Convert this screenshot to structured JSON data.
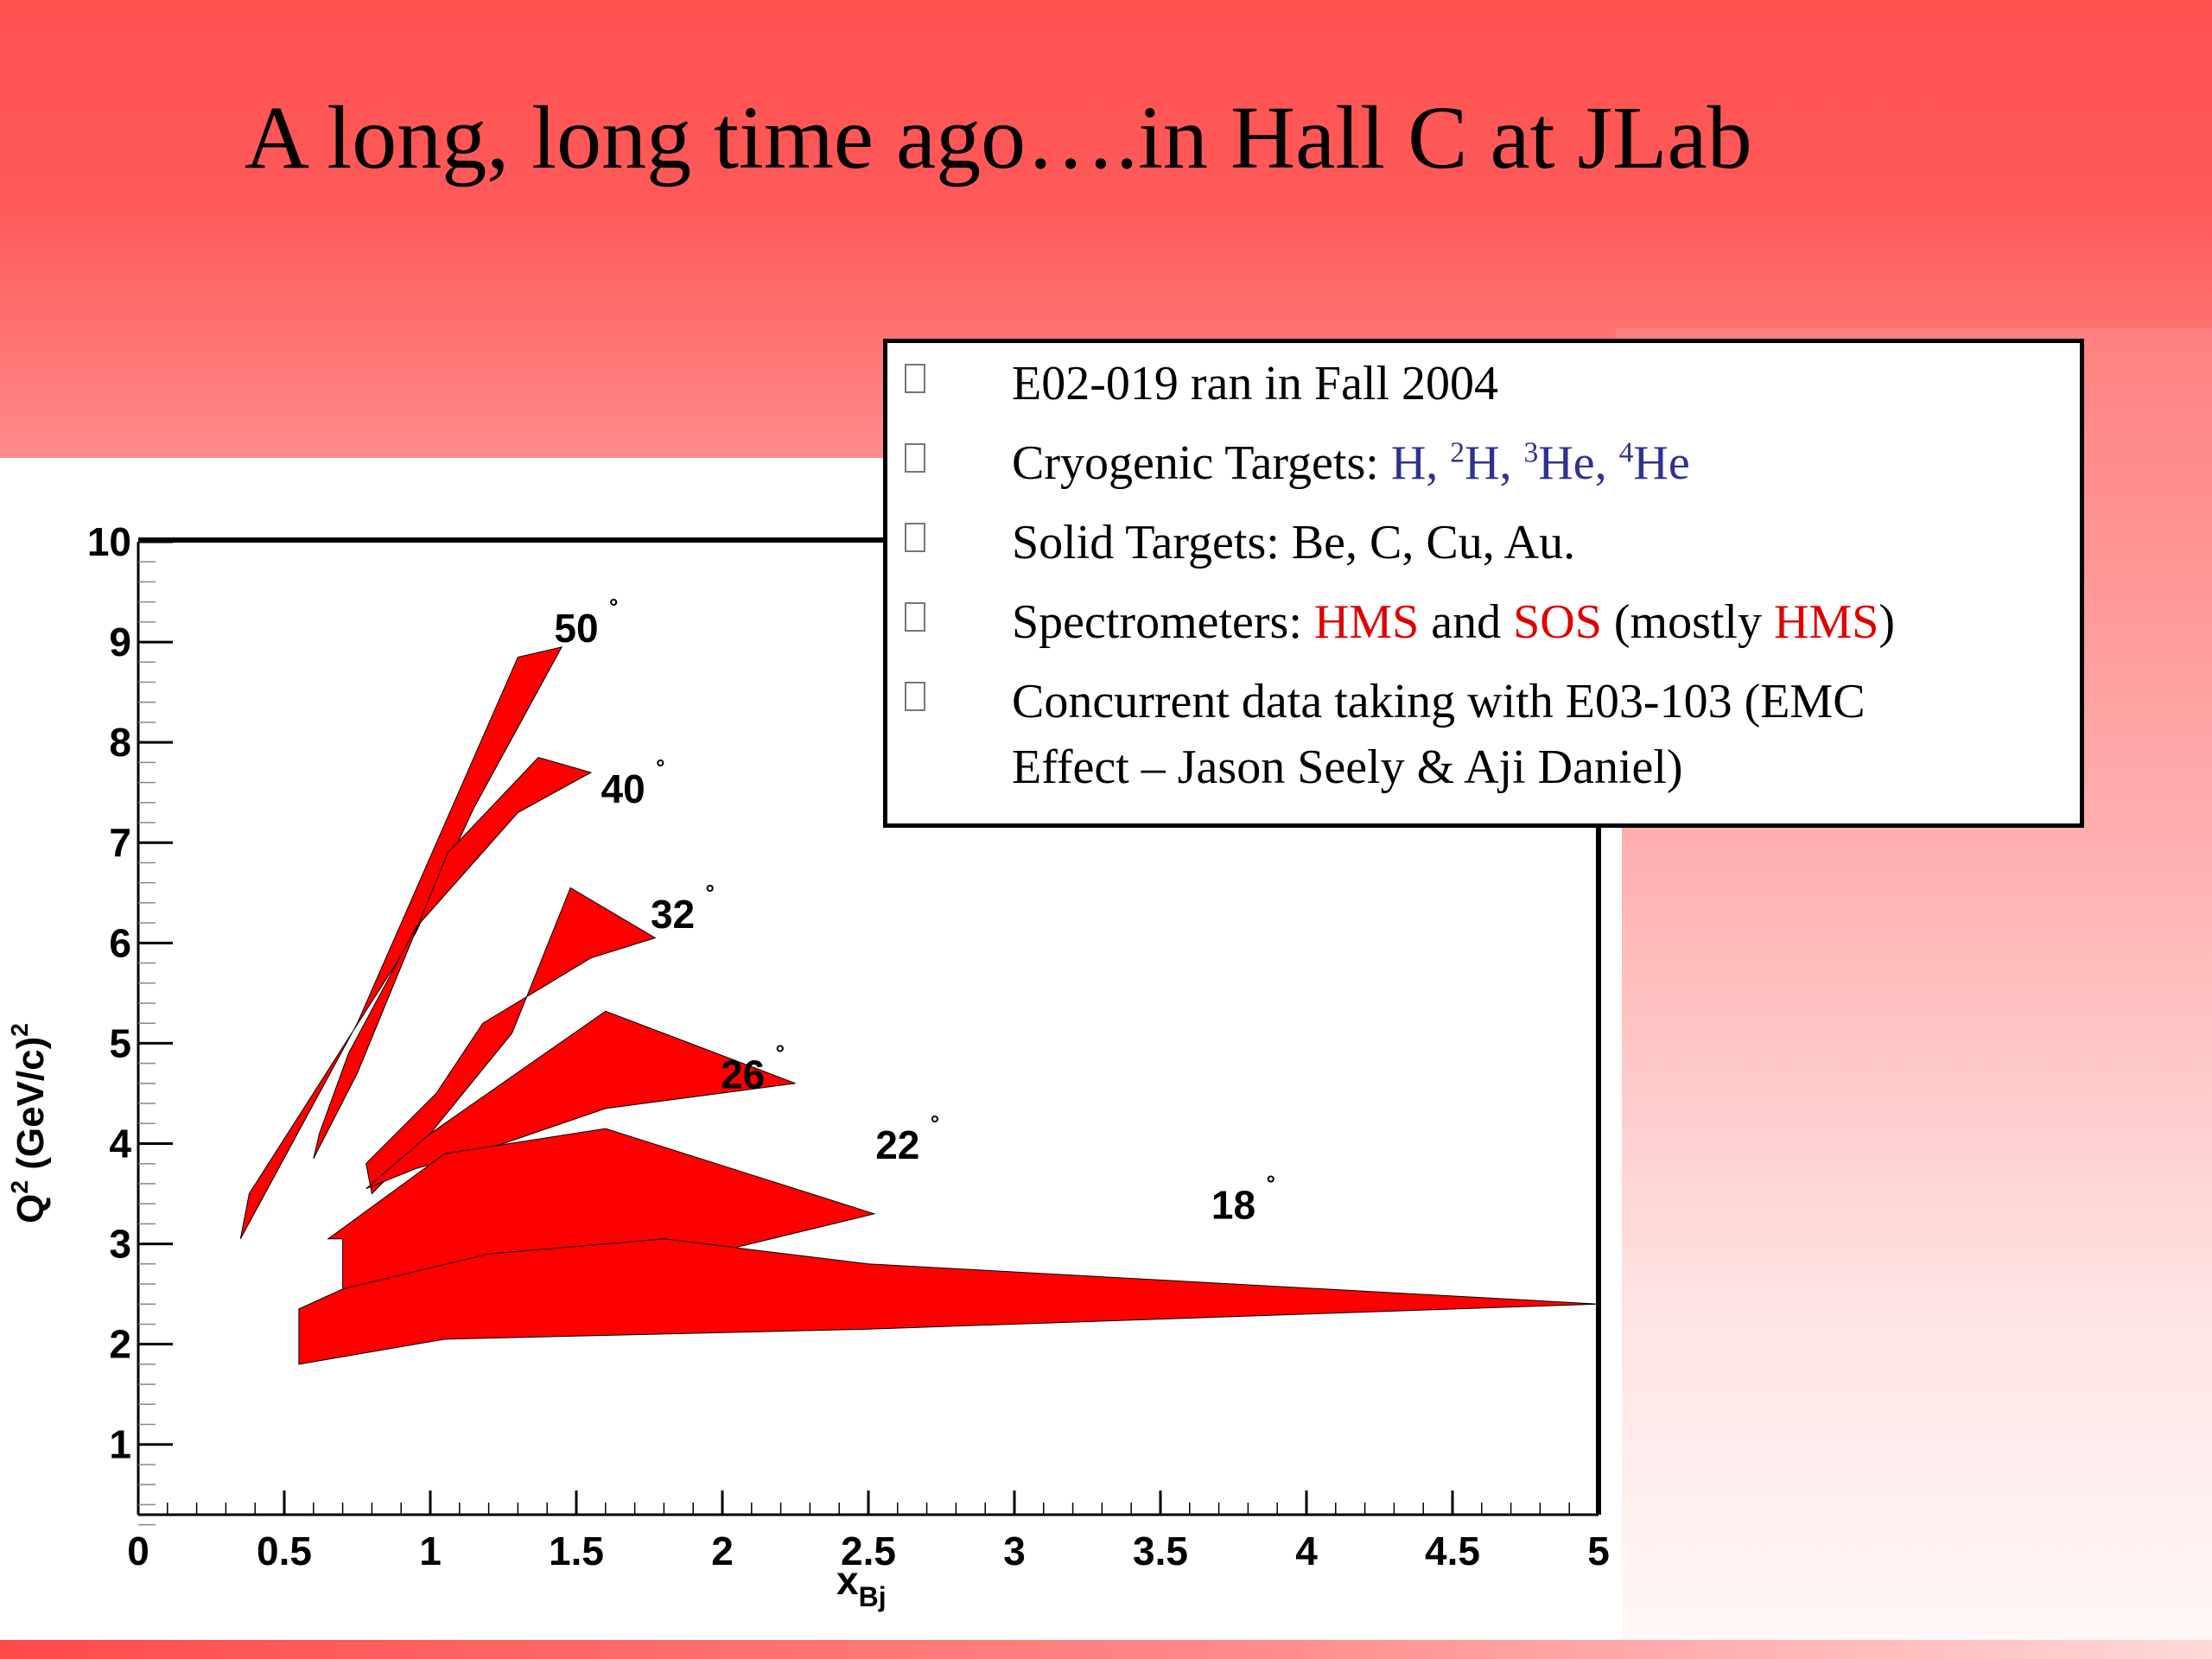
{
  "slide": {
    "title": "A long, long time ago….in Hall C at JLab"
  },
  "info_box": {
    "item1": "E02-019 ran in Fall 2004",
    "item2_prefix": "Cryogenic Targets: ",
    "item2_t1": "H, ",
    "item2_sup2": "2",
    "item2_t2": "H, ",
    "item2_sup3": "3",
    "item2_t3": "He, ",
    "item2_sup4": "4",
    "item2_t4": "He",
    "item3": "Solid Targets:  Be, C, Cu, Au.",
    "item4_prefix": "Spectrometers:  ",
    "item4_hms": "HMS",
    "item4_and": " and ",
    "item4_sos": "SOS",
    "item4_mostly": " (mostly ",
    "item4_hms2": "HMS",
    "item4_close": ")",
    "item5_line1": "Concurrent data taking with E03-103 (EMC",
    "item5_line2": "Effect – Jason Seely & Aji Daniel)"
  },
  "chart_data": {
    "type": "area",
    "xlabel_main": "x",
    "xlabel_sub": "Bj",
    "ylabel_main": "Q",
    "ylabel_sup": "2",
    "ylabel_rest": " (GeV/c)",
    "ylabel_sup2": "2",
    "xlim": [
      0,
      5
    ],
    "ylim": [
      0.3,
      10
    ],
    "x_ticks": [
      "0",
      "0.5",
      "1",
      "1.5",
      "2",
      "2.5",
      "3",
      "3.5",
      "4",
      "4.5",
      "5"
    ],
    "y_ticks": [
      "1",
      "2",
      "3",
      "4",
      "5",
      "6",
      "7",
      "8",
      "9",
      "10"
    ],
    "fill_color": "#ff0000",
    "series": [
      {
        "name": "50",
        "label_x": 1.5,
        "label_y": 9.0,
        "polygon": [
          [
            0.35,
            3.05
          ],
          [
            0.75,
            5.2
          ],
          [
            1.3,
            8.85
          ],
          [
            1.45,
            8.95
          ],
          [
            1.15,
            7.35
          ],
          [
            0.95,
            6.1
          ],
          [
            0.38,
            3.5
          ]
        ]
      },
      {
        "name": "40",
        "label_x": 1.66,
        "label_y": 7.4,
        "polygon": [
          [
            0.6,
            3.85
          ],
          [
            0.75,
            4.7
          ],
          [
            1.06,
            6.9
          ],
          [
            1.37,
            7.85
          ],
          [
            1.55,
            7.7
          ],
          [
            1.3,
            7.3
          ],
          [
            0.95,
            6.15
          ],
          [
            0.72,
            4.9
          ],
          [
            0.62,
            4.1
          ]
        ]
      },
      {
        "name": "32",
        "label_x": 1.83,
        "label_y": 6.15,
        "polygon": [
          [
            0.8,
            3.5
          ],
          [
            1.0,
            4.1
          ],
          [
            1.28,
            5.1
          ],
          [
            1.48,
            6.55
          ],
          [
            1.77,
            6.05
          ],
          [
            1.55,
            5.85
          ],
          [
            1.18,
            5.2
          ],
          [
            1.02,
            4.5
          ],
          [
            0.78,
            3.8
          ]
        ]
      },
      {
        "name": "26",
        "label_x": 2.07,
        "label_y": 4.55,
        "polygon": [
          [
            0.78,
            3.55
          ],
          [
            1.0,
            4.1
          ],
          [
            1.6,
            5.32
          ],
          [
            2.25,
            4.6
          ],
          [
            1.6,
            4.35
          ],
          [
            1.25,
            4.0
          ],
          [
            0.95,
            3.75
          ]
        ]
      },
      {
        "name": "22",
        "label_x": 2.6,
        "label_y": 3.85,
        "polygon": [
          [
            0.7,
            2.05
          ],
          [
            1.1,
            2.4
          ],
          [
            1.6,
            2.65
          ],
          [
            2.52,
            3.3
          ],
          [
            1.6,
            4.15
          ],
          [
            1.05,
            3.9
          ],
          [
            0.65,
            3.05
          ],
          [
            0.7,
            3.05
          ]
        ]
      },
      {
        "name": "18",
        "label_x": 3.75,
        "label_y": 3.25,
        "polygon": [
          [
            0.55,
            1.8
          ],
          [
            1.05,
            2.05
          ],
          [
            2.5,
            2.15
          ],
          [
            5.0,
            2.4
          ],
          [
            2.5,
            2.8
          ],
          [
            1.8,
            3.05
          ],
          [
            1.2,
            2.9
          ],
          [
            0.7,
            2.55
          ],
          [
            0.55,
            2.35
          ]
        ]
      }
    ],
    "degree_symbol": "°"
  }
}
